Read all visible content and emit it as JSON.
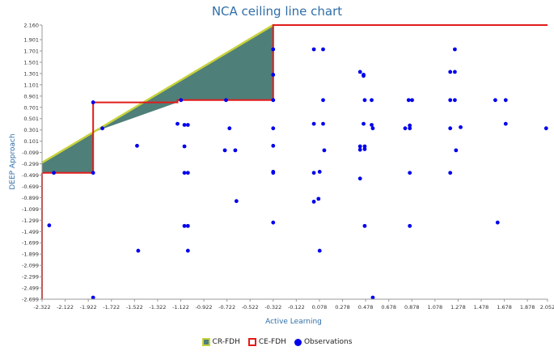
{
  "chart_data": {
    "type": "scatter",
    "title": "NCA ceiling line chart",
    "xlabel": "Active Learning",
    "ylabel": "DEEP Approach",
    "xlim": [
      -2.322,
      2.052
    ],
    "ylim": [
      -2.699,
      2.16
    ],
    "x_ticks": [
      "-2.322",
      "-2.122",
      "-1.922",
      "-1.722",
      "-1.522",
      "-1.322",
      "-1.122",
      "-0.922",
      "-0.722",
      "-0.522",
      "-0.322",
      "-0.122",
      "0.078",
      "0.278",
      "0.478",
      "0.678",
      "0.878",
      "1.078",
      "1.278",
      "1.478",
      "1.678",
      "1.878",
      "2.052"
    ],
    "y_ticks": [
      "2.160",
      "1.901",
      "1.701",
      "1.501",
      "1.301",
      "1.101",
      "0.901",
      "0.701",
      "0.501",
      "0.301",
      "0.101",
      "-0.099",
      "-0.299",
      "-0.499",
      "-0.699",
      "-0.899",
      "-1.099",
      "-1.299",
      "-1.499",
      "-1.699",
      "-1.899",
      "-2.099",
      "-2.299",
      "-2.499",
      "-2.699"
    ],
    "legend": [
      "CR-FDH",
      "CE-FDH",
      "Observations"
    ],
    "legend_position": "bottom",
    "colors": {
      "cr_fill": "#4f7f79",
      "cr_line": "#c8d23a",
      "ce_line": "#e21b1b",
      "obs": "#0000ee",
      "title": "#2f6ea8",
      "axis_label": "#2f6ea8"
    },
    "ce_fdh_steps": [
      [
        -2.322,
        -0.459
      ],
      [
        -1.88,
        -0.459
      ],
      [
        -1.88,
        0.79
      ],
      [
        -1.15,
        0.79
      ],
      [
        -1.15,
        0.83
      ],
      [
        -0.322,
        0.83
      ],
      [
        -0.322,
        2.16
      ],
      [
        2.052,
        2.16
      ]
    ],
    "cr_fdh_line": [
      [
        -2.322,
        -0.28
      ],
      [
        -0.322,
        2.16
      ]
    ],
    "observations": [
      [
        -2.26,
        -1.39
      ],
      [
        -2.22,
        -0.459
      ],
      [
        -1.88,
        -0.459
      ],
      [
        -1.88,
        0.79
      ],
      [
        -1.88,
        -2.67
      ],
      [
        -1.8,
        0.33
      ],
      [
        -1.5,
        0.02
      ],
      [
        -1.49,
        -1.84
      ],
      [
        -1.12,
        0.83
      ],
      [
        -1.15,
        0.41
      ],
      [
        -1.09,
        0.39
      ],
      [
        -1.06,
        0.39
      ],
      [
        -1.09,
        0.01
      ],
      [
        -1.09,
        -0.459
      ],
      [
        -1.06,
        -0.459
      ],
      [
        -1.09,
        -1.4
      ],
      [
        -1.06,
        -1.4
      ],
      [
        -1.06,
        -1.84
      ],
      [
        -0.73,
        0.83
      ],
      [
        -0.7,
        0.33
      ],
      [
        -0.74,
        -0.06
      ],
      [
        -0.65,
        -0.06
      ],
      [
        -0.64,
        -0.96
      ],
      [
        -0.322,
        1.73
      ],
      [
        -0.322,
        1.28
      ],
      [
        -0.322,
        0.83
      ],
      [
        -0.322,
        0.33
      ],
      [
        -0.322,
        0.02
      ],
      [
        -0.322,
        -0.44
      ],
      [
        -0.322,
        -0.459
      ],
      [
        -0.322,
        -1.34
      ],
      [
        0.03,
        1.73
      ],
      [
        0.11,
        1.73
      ],
      [
        0.03,
        0.41
      ],
      [
        0.11,
        0.41
      ],
      [
        0.11,
        0.83
      ],
      [
        0.12,
        -0.06
      ],
      [
        0.03,
        -0.459
      ],
      [
        0.08,
        -0.44
      ],
      [
        0.03,
        -0.97
      ],
      [
        0.07,
        -0.92
      ],
      [
        0.08,
        -1.84
      ],
      [
        0.43,
        1.33
      ],
      [
        0.46,
        1.28
      ],
      [
        0.46,
        1.26
      ],
      [
        0.47,
        0.83
      ],
      [
        0.53,
        0.83
      ],
      [
        0.46,
        0.41
      ],
      [
        0.53,
        0.39
      ],
      [
        0.54,
        0.33
      ],
      [
        0.43,
        0.01
      ],
      [
        0.47,
        0.01
      ],
      [
        0.43,
        -0.05
      ],
      [
        0.47,
        -0.04
      ],
      [
        0.43,
        -0.56
      ],
      [
        0.47,
        -1.4
      ],
      [
        0.54,
        -2.67
      ],
      [
        0.85,
        0.83
      ],
      [
        0.88,
        0.83
      ],
      [
        0.82,
        0.33
      ],
      [
        0.86,
        0.33
      ],
      [
        0.86,
        0.38
      ],
      [
        0.86,
        -0.459
      ],
      [
        0.86,
        -1.4
      ],
      [
        1.21,
        1.33
      ],
      [
        1.25,
        1.73
      ],
      [
        1.25,
        1.33
      ],
      [
        1.21,
        0.83
      ],
      [
        1.25,
        0.83
      ],
      [
        1.21,
        0.33
      ],
      [
        1.3,
        0.35
      ],
      [
        1.26,
        -0.06
      ],
      [
        1.21,
        -0.459
      ],
      [
        1.62,
        -1.34
      ],
      [
        1.6,
        0.83
      ],
      [
        1.69,
        0.83
      ],
      [
        1.69,
        0.41
      ],
      [
        2.04,
        0.33
      ]
    ]
  }
}
